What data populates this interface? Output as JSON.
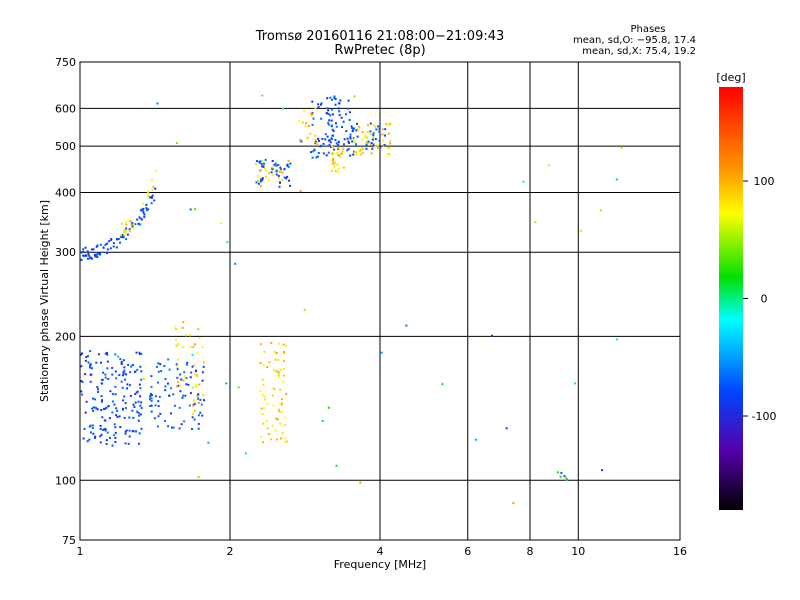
{
  "header": {
    "title_line1": "Tromsø 20160116 21:08:00−21:09:43",
    "title_line2": "RwPretec (8p)",
    "stats_title": "Phases",
    "stats_line1": "mean, sd,O: −95.8, 17.4",
    "stats_line2": "mean, sd,X:  75.4, 19.2"
  },
  "chart_data": {
    "type": "scatter",
    "title": "Tromsø 20160116 21:08:00−21:09:43",
    "subtitle": "RwPretec (8p)",
    "xlabel": "Frequency [MHz]",
    "ylabel": "Stationary phase Virtual Height [km]",
    "x_scale": "log",
    "y_scale": "log",
    "xlim": [
      1,
      16
    ],
    "ylim": [
      75,
      750
    ],
    "x_ticks": [
      1,
      2,
      4,
      6,
      8,
      10,
      16
    ],
    "x_tick_labels": [
      "1",
      "2",
      "4",
      "6",
      "8",
      "10",
      "16"
    ],
    "y_ticks": [
      75,
      100,
      200,
      300,
      400,
      500,
      600,
      750
    ],
    "y_tick_labels": [
      "75",
      "100",
      "200",
      "300",
      "400",
      "500",
      "600",
      "750"
    ],
    "grid": true,
    "colorbar": {
      "label": "[deg]",
      "range": [
        -180,
        180
      ],
      "ticks": [
        100,
        0,
        -100
      ],
      "tick_labels": [
        "100",
        "0",
        "-100"
      ]
    },
    "colors": {
      "background": "#ffffff",
      "grid": "#000000",
      "axes": "#000000"
    },
    "clusters": [
      {
        "name": "low-E-blue",
        "f": [
          1.0,
          1.33
        ],
        "h": [
          118,
          185
        ],
        "phase": [
          -115,
          -80
        ],
        "n": 190
      },
      {
        "name": "low-mid-blue",
        "f": [
          1.38,
          1.78
        ],
        "h": [
          128,
          180
        ],
        "phase": [
          -115,
          -70
        ],
        "n": 90
      },
      {
        "name": "low-mid-yellow",
        "f": [
          1.55,
          1.78
        ],
        "h": [
          135,
          215
        ],
        "phase": [
          60,
          110
        ],
        "n": 40
      },
      {
        "name": "e2-yellow",
        "f": [
          2.3,
          2.6
        ],
        "h": [
          120,
          195
        ],
        "phase": [
          70,
          110
        ],
        "n": 70
      },
      {
        "name": "f1-blue-rise",
        "f": [
          1.0,
          1.42
        ],
        "h": [
          298,
          400
        ],
        "phase": [
          -115,
          -85
        ],
        "n": 95
      },
      {
        "name": "f1-yellow-rise",
        "f": [
          1.2,
          1.42
        ],
        "h": [
          335,
          440
        ],
        "phase": [
          60,
          110
        ],
        "n": 22
      },
      {
        "name": "f1-mid-blue",
        "f": [
          2.25,
          2.65
        ],
        "h": [
          410,
          470
        ],
        "phase": [
          -115,
          -80
        ],
        "n": 45
      },
      {
        "name": "f1-mid-yellow",
        "f": [
          2.25,
          2.7
        ],
        "h": [
          410,
          470
        ],
        "phase": [
          60,
          110
        ],
        "n": 18
      },
      {
        "name": "f2-blue",
        "f": [
          2.9,
          3.55
        ],
        "h": [
          470,
          640
        ],
        "phase": [
          -115,
          -80
        ],
        "n": 110
      },
      {
        "name": "f2-yellow-a",
        "f": [
          2.75,
          3.0
        ],
        "h": [
          500,
          610
        ],
        "phase": [
          70,
          115
        ],
        "n": 18
      },
      {
        "name": "f2-yellow-b",
        "f": [
          3.2,
          3.4
        ],
        "h": [
          440,
          500
        ],
        "phase": [
          70,
          110
        ],
        "n": 28
      },
      {
        "name": "f2-yellow-c",
        "f": [
          3.5,
          4.2
        ],
        "h": [
          480,
          560
        ],
        "phase": [
          60,
          110
        ],
        "n": 50
      },
      {
        "name": "f2-blue-c",
        "f": [
          3.55,
          4.1
        ],
        "h": [
          490,
          560
        ],
        "phase": [
          -110,
          -80
        ],
        "n": 25
      },
      {
        "name": "high-pair",
        "f": [
          9.1,
          9.5
        ],
        "h": [
          100,
          105
        ],
        "phase": [
          -110,
          100
        ],
        "n": 8
      },
      {
        "name": "scattered",
        "f": [
          1.0,
          12.5
        ],
        "h": [
          80,
          650
        ],
        "phase": [
          -120,
          120
        ],
        "n": 45
      }
    ]
  }
}
